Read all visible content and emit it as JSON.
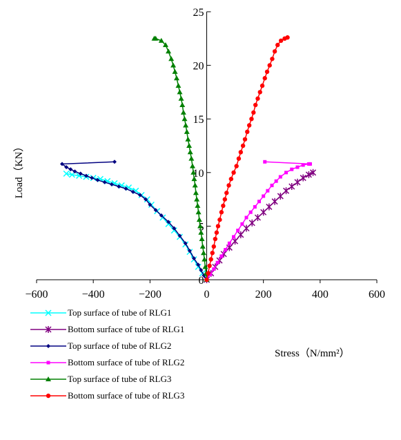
{
  "chart_data": {
    "type": "scatter",
    "xlabel": "Stress（N/mm²）",
    "ylabel": "Load（KN）",
    "xlim": [
      -600,
      600
    ],
    "ylim": [
      0,
      25
    ],
    "x_ticks": [
      "-600",
      "-400",
      "-200",
      "0",
      "200",
      "400",
      "600"
    ],
    "y_ticks": [
      "0",
      "5",
      "10",
      "15",
      "20",
      "25"
    ],
    "grid": false,
    "legend_position": "bottom-left",
    "series": [
      {
        "name": "Top surface of tube of RLG1",
        "color": "#00FFFF",
        "marker": "x",
        "points": [
          [
            0,
            0
          ],
          [
            -15,
            0.6
          ],
          [
            -30,
            1.2
          ],
          [
            -45,
            1.9
          ],
          [
            -60,
            2.6
          ],
          [
            -75,
            3.3
          ],
          [
            -95,
            4.0
          ],
          [
            -115,
            4.6
          ],
          [
            -135,
            5.2
          ],
          [
            -155,
            5.8
          ],
          [
            -175,
            6.4
          ],
          [
            -195,
            7.0
          ],
          [
            -210,
            7.5
          ],
          [
            -230,
            7.9
          ],
          [
            -250,
            8.3
          ],
          [
            -275,
            8.6
          ],
          [
            -300,
            8.8
          ],
          [
            -325,
            9.0
          ],
          [
            -350,
            9.2
          ],
          [
            -375,
            9.4
          ],
          [
            -400,
            9.5
          ],
          [
            -425,
            9.6
          ],
          [
            -450,
            9.7
          ],
          [
            -475,
            9.8
          ],
          [
            -495,
            9.9
          ]
        ]
      },
      {
        "name": "Bottom surface of tube of RLG1",
        "color": "#800080",
        "marker": "star",
        "points": [
          [
            0,
            0
          ],
          [
            15,
            0.6
          ],
          [
            30,
            1.2
          ],
          [
            45,
            1.8
          ],
          [
            60,
            2.4
          ],
          [
            80,
            3.0
          ],
          [
            100,
            3.6
          ],
          [
            120,
            4.2
          ],
          [
            140,
            4.8
          ],
          [
            160,
            5.3
          ],
          [
            180,
            5.8
          ],
          [
            200,
            6.3
          ],
          [
            220,
            6.8
          ],
          [
            240,
            7.3
          ],
          [
            260,
            7.8
          ],
          [
            280,
            8.3
          ],
          [
            300,
            8.7
          ],
          [
            320,
            9.1
          ],
          [
            340,
            9.5
          ],
          [
            360,
            9.8
          ],
          [
            375,
            10.0
          ]
        ]
      },
      {
        "name": "Top surface of tube of RLG2",
        "color": "#000080",
        "marker": "diamond",
        "points": [
          [
            0,
            0
          ],
          [
            -10,
            0.4
          ],
          [
            -20,
            0.9
          ],
          [
            -30,
            1.4
          ],
          [
            -45,
            2.0
          ],
          [
            -60,
            2.7
          ],
          [
            -75,
            3.4
          ],
          [
            -95,
            4.1
          ],
          [
            -115,
            4.8
          ],
          [
            -135,
            5.4
          ],
          [
            -160,
            6.0
          ],
          [
            -180,
            6.5
          ],
          [
            -200,
            7.0
          ],
          [
            -215,
            7.5
          ],
          [
            -235,
            7.9
          ],
          [
            -260,
            8.2
          ],
          [
            -285,
            8.5
          ],
          [
            -310,
            8.7
          ],
          [
            -335,
            8.9
          ],
          [
            -360,
            9.1
          ],
          [
            -385,
            9.3
          ],
          [
            -405,
            9.5
          ],
          [
            -425,
            9.7
          ],
          [
            -445,
            9.9
          ],
          [
            -465,
            10.1
          ],
          [
            -480,
            10.3
          ],
          [
            -495,
            10.5
          ],
          [
            -510,
            10.8
          ],
          [
            -325,
            11.0
          ]
        ]
      },
      {
        "name": "Bottom surface of tube of RLG2",
        "color": "#FF00FF",
        "marker": "square",
        "points": [
          [
            0,
            0
          ],
          [
            12,
            0.5
          ],
          [
            25,
            1.0
          ],
          [
            38,
            1.6
          ],
          [
            52,
            2.2
          ],
          [
            66,
            2.8
          ],
          [
            80,
            3.4
          ],
          [
            95,
            4.0
          ],
          [
            110,
            4.6
          ],
          [
            125,
            5.2
          ],
          [
            140,
            5.8
          ],
          [
            155,
            6.3
          ],
          [
            170,
            6.8
          ],
          [
            185,
            7.3
          ],
          [
            200,
            7.8
          ],
          [
            215,
            8.3
          ],
          [
            230,
            8.8
          ],
          [
            245,
            9.2
          ],
          [
            260,
            9.6
          ],
          [
            280,
            10.0
          ],
          [
            300,
            10.3
          ],
          [
            320,
            10.5
          ],
          [
            340,
            10.7
          ],
          [
            360,
            10.8
          ],
          [
            365,
            10.8
          ],
          [
            205,
            11.0
          ]
        ]
      },
      {
        "name": "Top surface of tube of RLG3",
        "color": "#008000",
        "marker": "triangle",
        "points": [
          [
            0,
            0
          ],
          [
            -2,
            0.6
          ],
          [
            -5,
            1.2
          ],
          [
            -8,
            1.9
          ],
          [
            -11,
            2.5
          ],
          [
            -14,
            3.1
          ],
          [
            -17,
            3.8
          ],
          [
            -20,
            4.4
          ],
          [
            -23,
            5.0
          ],
          [
            -26,
            5.6
          ],
          [
            -29,
            6.3
          ],
          [
            -32,
            6.9
          ],
          [
            -35,
            7.5
          ],
          [
            -38,
            8.1
          ],
          [
            -41,
            8.8
          ],
          [
            -44,
            9.4
          ],
          [
            -47,
            10.0
          ],
          [
            -50,
            10.6
          ],
          [
            -54,
            11.3
          ],
          [
            -58,
            11.9
          ],
          [
            -62,
            12.5
          ],
          [
            -66,
            13.1
          ],
          [
            -70,
            13.8
          ],
          [
            -74,
            14.4
          ],
          [
            -78,
            15.0
          ],
          [
            -82,
            15.6
          ],
          [
            -86,
            16.3
          ],
          [
            -90,
            16.9
          ],
          [
            -95,
            17.5
          ],
          [
            -100,
            18.1
          ],
          [
            -106,
            18.8
          ],
          [
            -112,
            19.4
          ],
          [
            -118,
            20.0
          ],
          [
            -125,
            20.6
          ],
          [
            -135,
            21.3
          ],
          [
            -145,
            21.9
          ],
          [
            -160,
            22.3
          ],
          [
            -180,
            22.5
          ],
          [
            -185,
            22.5
          ]
        ]
      },
      {
        "name": "Bottom surface of tube of RLG3",
        "color": "#FF0000",
        "marker": "circle",
        "points": [
          [
            0,
            0
          ],
          [
            5,
            0.6
          ],
          [
            10,
            1.3
          ],
          [
            15,
            1.9
          ],
          [
            20,
            2.5
          ],
          [
            25,
            3.1
          ],
          [
            30,
            3.8
          ],
          [
            35,
            4.4
          ],
          [
            40,
            5.0
          ],
          [
            46,
            5.6
          ],
          [
            52,
            6.3
          ],
          [
            58,
            6.9
          ],
          [
            64,
            7.5
          ],
          [
            70,
            8.1
          ],
          [
            78,
            8.8
          ],
          [
            86,
            9.4
          ],
          [
            95,
            10.0
          ],
          [
            105,
            10.6
          ],
          [
            113,
            11.3
          ],
          [
            120,
            11.9
          ],
          [
            128,
            12.5
          ],
          [
            135,
            13.1
          ],
          [
            143,
            13.8
          ],
          [
            150,
            14.4
          ],
          [
            158,
            15.0
          ],
          [
            165,
            15.6
          ],
          [
            172,
            16.3
          ],
          [
            180,
            16.9
          ],
          [
            188,
            17.5
          ],
          [
            196,
            18.1
          ],
          [
            205,
            18.8
          ],
          [
            213,
            19.4
          ],
          [
            222,
            20.0
          ],
          [
            231,
            20.6
          ],
          [
            240,
            21.3
          ],
          [
            250,
            21.9
          ],
          [
            262,
            22.3
          ],
          [
            275,
            22.5
          ],
          [
            285,
            22.6
          ]
        ]
      }
    ]
  }
}
